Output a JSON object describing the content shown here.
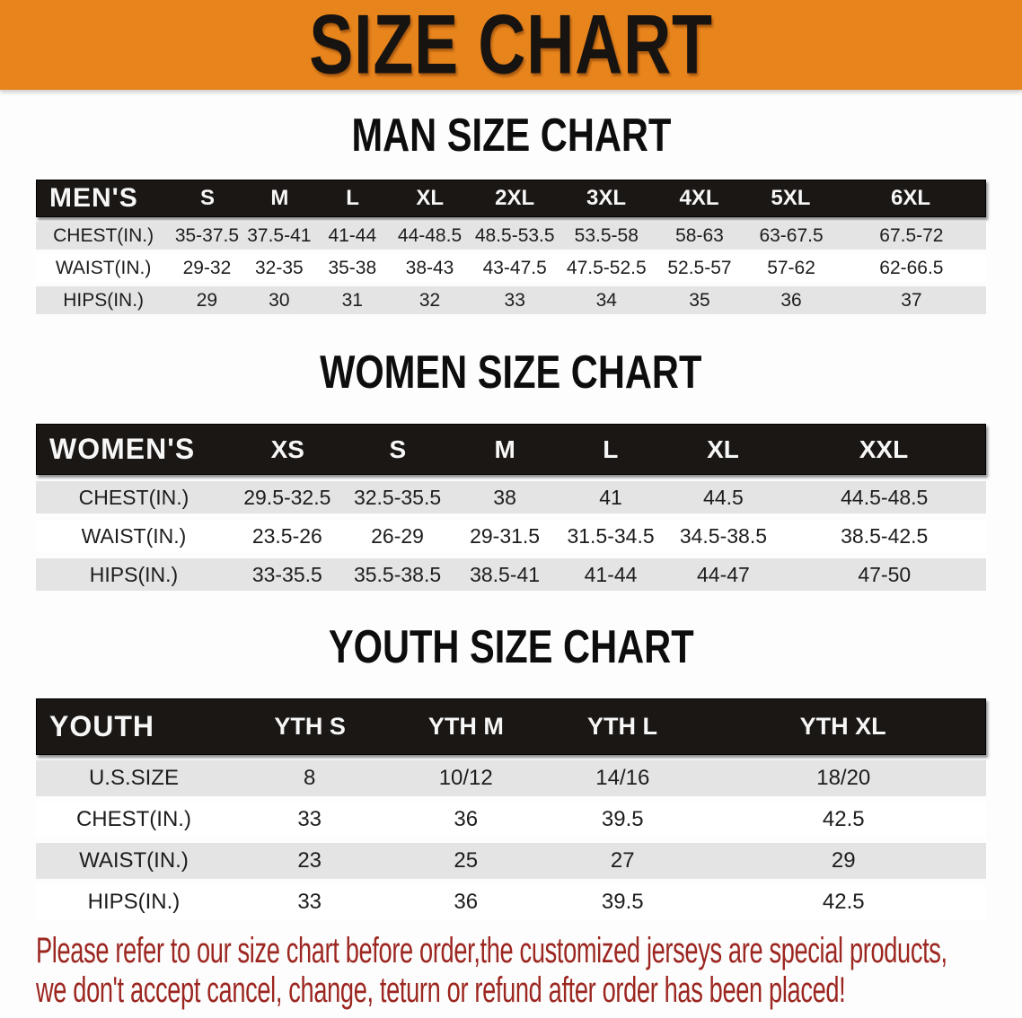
{
  "banner": {
    "title": "SIZE CHART"
  },
  "colors": {
    "banner_bg": "#E8841C",
    "header_bg": "#1B1715",
    "row_alt_bg": "#E4E4E4",
    "disclaimer_text": "#9C2620"
  },
  "sections": [
    {
      "heading": "MAN SIZE CHART",
      "table": {
        "label": "MEN'S",
        "sizes": [
          "S",
          "M",
          "L",
          "XL",
          "2XL",
          "3XL",
          "4XL",
          "5XL",
          "6XL"
        ],
        "rows": [
          {
            "label": "CHEST(IN.)",
            "values": [
              "35-37.5",
              "37.5-41",
              "41-44",
              "44-48.5",
              "48.5-53.5",
              "53.5-58",
              "58-63",
              "63-67.5",
              "67.5-72"
            ]
          },
          {
            "label": "WAIST(IN.)",
            "values": [
              "29-32",
              "32-35",
              "35-38",
              "38-43",
              "43-47.5",
              "47.5-52.5",
              "52.5-57",
              "57-62",
              "62-66.5"
            ]
          },
          {
            "label": "HIPS(IN.)",
            "values": [
              "29",
              "30",
              "31",
              "32",
              "33",
              "34",
              "35",
              "36",
              "37"
            ]
          }
        ]
      }
    },
    {
      "heading": "WOMEN SIZE CHART",
      "table": {
        "label": "WOMEN'S",
        "sizes": [
          "XS",
          "S",
          "M",
          "L",
          "XL",
          "XXL"
        ],
        "rows": [
          {
            "label": "CHEST(IN.)",
            "values": [
              "29.5-32.5",
              "32.5-35.5",
              "38",
              "41",
              "44.5",
              "44.5-48.5"
            ]
          },
          {
            "label": "WAIST(IN.)",
            "values": [
              "23.5-26",
              "26-29",
              "29-31.5",
              "31.5-34.5",
              "34.5-38.5",
              "38.5-42.5"
            ]
          },
          {
            "label": "HIPS(IN.)",
            "values": [
              "33-35.5",
              "35.5-38.5",
              "38.5-41",
              "41-44",
              "44-47",
              "47-50"
            ]
          }
        ]
      }
    },
    {
      "heading": "YOUTH SIZE CHART",
      "table": {
        "label": "YOUTH",
        "sizes": [
          "YTH S",
          "YTH M",
          "YTH L",
          "YTH XL"
        ],
        "rows": [
          {
            "label": "U.S.SIZE",
            "values": [
              "8",
              "10/12",
              "14/16",
              "18/20"
            ]
          },
          {
            "label": "CHEST(IN.)",
            "values": [
              "33",
              "36",
              "39.5",
              "42.5"
            ]
          },
          {
            "label": "WAIST(IN.)",
            "values": [
              "23",
              "25",
              "27",
              "29"
            ]
          },
          {
            "label": "HIPS(IN.)",
            "values": [
              "33",
              "36",
              "39.5",
              "42.5"
            ]
          }
        ]
      }
    }
  ],
  "disclaimer": {
    "line1": "Please refer to our size chart before order,the customized jerseys are special products,",
    "line2": "we don't accept cancel, change, teturn or refund after order has been placed!"
  }
}
